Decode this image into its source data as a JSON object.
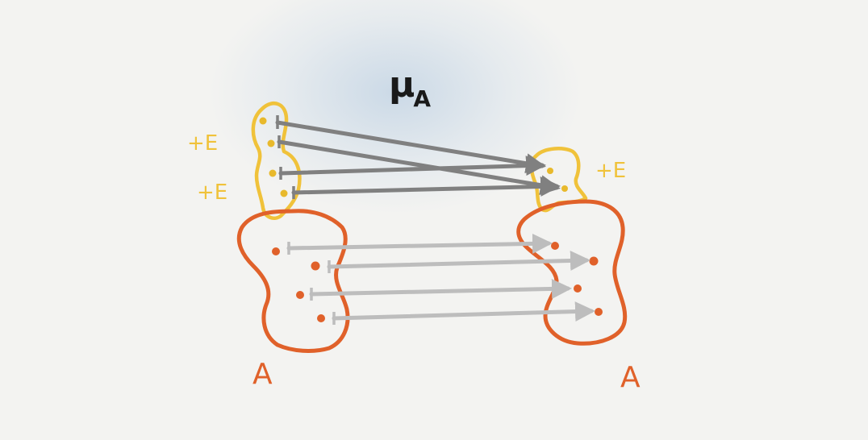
{
  "title": {
    "symbol": "μ",
    "subscript": "A"
  },
  "left_set": {
    "label": "A",
    "extension_labels": [
      "+E",
      "+E"
    ]
  },
  "right_set": {
    "label": "A",
    "extension_labels": [
      "+E"
    ]
  },
  "colors": {
    "background": "#f3f3f1",
    "cloud": "#aac4de",
    "set_outline": "#e0612a",
    "extension_outline": "#f0c23a",
    "extension_dots": "#e8b92c",
    "set_dots": "#e0612a",
    "dark_arrow": "#808080",
    "light_arrow": "#bdbdbd",
    "title_ink": "#1a1a1a"
  },
  "mappings": {
    "extension_arrows": 4,
    "set_arrows": 4
  }
}
